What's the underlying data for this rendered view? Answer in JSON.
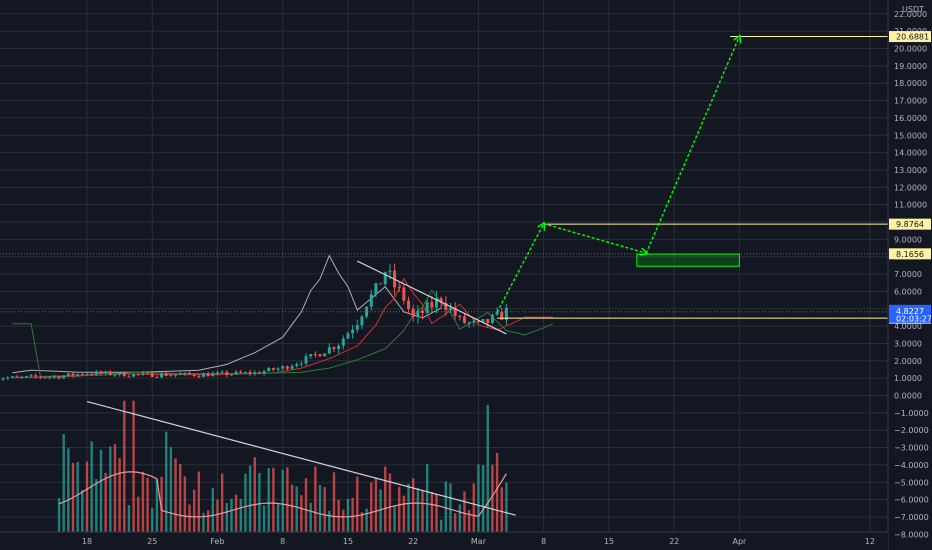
{
  "chart_data": {
    "type": "candlestick",
    "currency": "USDT",
    "y_ticks": [
      "22.0000",
      "21.0000",
      "20.0000",
      "19.0000",
      "18.0000",
      "17.0000",
      "16.0000",
      "15.0000",
      "14.0000",
      "13.0000",
      "12.0000",
      "11.0000",
      "10.0000",
      "9.0000",
      "8.0000",
      "7.0000",
      "6.0000",
      "5.0000",
      "4.0000",
      "3.0000",
      "2.0000",
      "1.0000",
      "0.0000",
      "−1.0000",
      "−2.0000",
      "−3.0000",
      "−4.0000",
      "−5.0000",
      "−6.0000",
      "−7.0000",
      "−8.0000"
    ],
    "x_ticks": [
      "18",
      "25",
      "Feb",
      "8",
      "15",
      "22",
      "Mar",
      "8",
      "15",
      "22",
      "Apr",
      "12"
    ],
    "price_tags": [
      {
        "label": "20.6881",
        "value": 20.6881,
        "color": "#fff3a3"
      },
      {
        "label": "9.8764",
        "value": 9.8764,
        "color": "#fff3a3"
      },
      {
        "label": "8.1656",
        "value": 8.1656,
        "color": "#fff3a3"
      },
      {
        "label": "4.4599",
        "value": 4.4599,
        "color": "#fff3a3"
      }
    ],
    "current_price": {
      "label": "4.8227",
      "sublabel": "02:03:27",
      "value": 4.8227,
      "color": "#2962ff"
    },
    "trend_lines": [
      {
        "name": "price-downtrend",
        "from": {
          "x": "2021-02-16",
          "y": 7.75
        },
        "to": {
          "x": "2021-03-04",
          "y": 3.55
        }
      },
      {
        "name": "volume-downtrend",
        "from": {
          "x": "2021-01-18",
          "y": -0.35
        },
        "to": {
          "x": "2021-03-05",
          "y": -6.9
        }
      }
    ],
    "projection_path": [
      {
        "x": "2021-03-03",
        "y": 4.8
      },
      {
        "x": "2021-03-08",
        "y": 9.9
      },
      {
        "x": "2021-03-19",
        "y": 8.2
      },
      {
        "x": "2021-03-29",
        "y": 20.7
      }
    ],
    "target_box": {
      "x_from": "2021-03-18",
      "x_to": "2021-03-29",
      "y_from": 7.45,
      "y_to": 8.15
    },
    "colors": {
      "background": "#131722",
      "grid": "#2a2e39",
      "up": "#26a69a",
      "down": "#ef5350",
      "projection": "#00ff00",
      "cloud_red": "#d32f2f",
      "cloud_green": "#2e7d32",
      "volume_ma": "#ef9a9a",
      "trend": "#d1d4dc"
    }
  }
}
